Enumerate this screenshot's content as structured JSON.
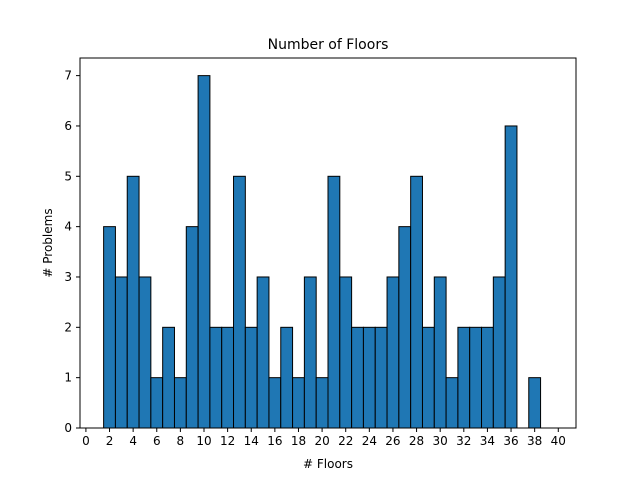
{
  "chart_data": {
    "type": "bar",
    "title": "Number of Floors",
    "xlabel": "# Floors",
    "ylabel": "# Problems",
    "xlim": [
      -0.5,
      41.5
    ],
    "ylim": [
      0,
      7.35
    ],
    "x": [
      1,
      2,
      3,
      4,
      5,
      6,
      7,
      8,
      9,
      10,
      11,
      12,
      13,
      14,
      15,
      16,
      17,
      18,
      19,
      20,
      21,
      22,
      23,
      24,
      25,
      26,
      27,
      28,
      29,
      30,
      31,
      32,
      33,
      34,
      35,
      36,
      37,
      38,
      39
    ],
    "values": [
      0,
      4,
      3,
      5,
      3,
      1,
      2,
      1,
      4,
      7,
      2,
      2,
      5,
      2,
      3,
      1,
      2,
      1,
      3,
      1,
      5,
      3,
      2,
      2,
      2,
      3,
      4,
      5,
      2,
      3,
      1,
      2,
      2,
      2,
      3,
      6,
      0,
      1,
      0
    ],
    "bar_width": 1,
    "x_ticks": [
      "0",
      "2",
      "4",
      "6",
      "8",
      "10",
      "12",
      "14",
      "16",
      "18",
      "20",
      "22",
      "24",
      "26",
      "28",
      "30",
      "32",
      "34",
      "36",
      "38",
      "40"
    ],
    "y_ticks": [
      "0",
      "1",
      "2",
      "3",
      "4",
      "5",
      "6",
      "7"
    ],
    "bar_color": "#1f77b4",
    "edge_color": "#000000",
    "grid": false
  }
}
